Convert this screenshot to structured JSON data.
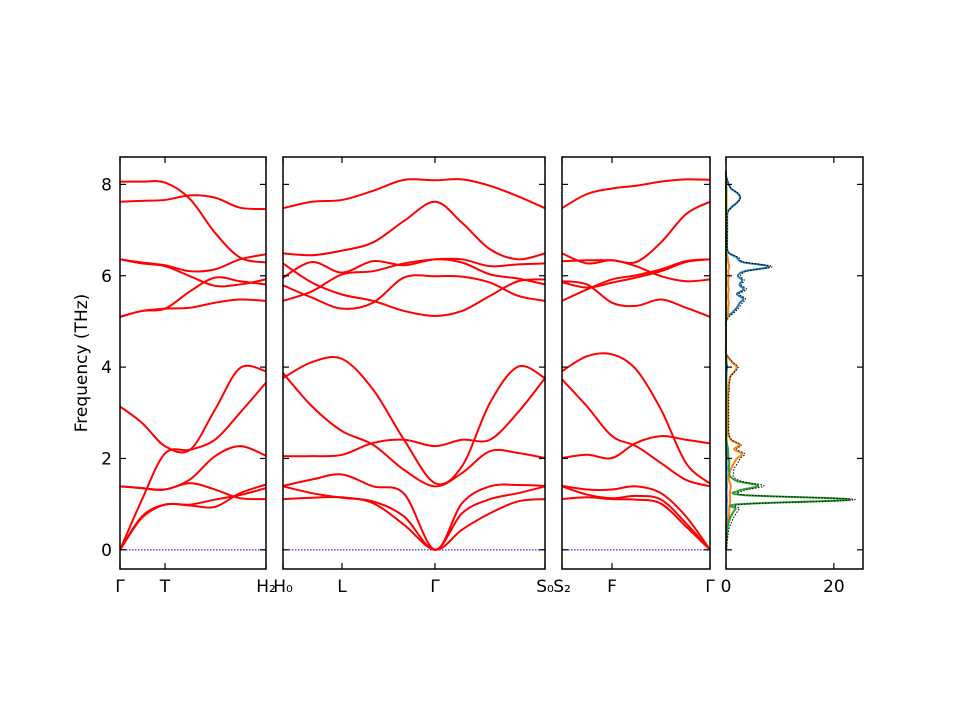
{
  "chart_data": [
    {
      "type": "line",
      "ylabel": "Frequency (THz)",
      "ylim": [
        -0.42,
        8.6
      ],
      "yticks": [
        0,
        2,
        4,
        6,
        8
      ],
      "band_color": "#ff0000",
      "zero_line_color": "#0000ff",
      "panels": [
        {
          "ticks": [
            {
              "label": "Γ",
              "x": 0
            },
            {
              "label": "T",
              "x": 0.45
            },
            {
              "label": "H₂",
              "x": 1.46
            }
          ],
          "x": [
            0,
            0.22,
            0.45,
            0.7,
            0.95,
            1.2,
            1.46
          ],
          "bands": [
            [
              8.06,
              8.06,
              8.04,
              7.68,
              6.94,
              6.4,
              6.29
            ],
            [
              7.62,
              7.64,
              7.66,
              7.76,
              7.71,
              7.49,
              7.46
            ],
            [
              6.36,
              6.29,
              6.23,
              6.1,
              6.14,
              6.36,
              6.47
            ],
            [
              6.36,
              6.27,
              6.21,
              5.99,
              5.78,
              5.81,
              5.92
            ],
            [
              5.1,
              5.23,
              5.28,
              5.66,
              5.96,
              5.88,
              5.81
            ],
            [
              5.1,
              5.23,
              5.28,
              5.3,
              5.41,
              5.48,
              5.45
            ],
            [
              3.14,
              2.78,
              2.27,
              2.19,
              3.07,
              3.98,
              3.91
            ],
            [
              0.0,
              1.1,
              2.11,
              2.19,
              2.41,
              3.0,
              3.66
            ],
            [
              1.39,
              1.35,
              1.32,
              1.54,
              2.05,
              2.27,
              2.06
            ],
            [
              1.39,
              1.35,
              1.32,
              1.46,
              1.32,
              1.13,
              1.11
            ],
            [
              0.0,
              0.73,
              0.99,
              0.97,
              0.94,
              1.24,
              1.43
            ],
            [
              0.0,
              0.7,
              0.99,
              0.99,
              1.1,
              1.2,
              1.35
            ]
          ]
        },
        {
          "ticks": [
            {
              "label": "H₀",
              "x": 0
            },
            {
              "label": "L",
              "x": 0.59
            },
            {
              "label": "Γ",
              "x": 1.52
            },
            {
              "label": "S₀",
              "x": 2.62
            }
          ],
          "x": [
            0,
            0.29,
            0.59,
            0.9,
            1.21,
            1.52,
            1.79,
            2.07,
            2.35,
            2.62
          ],
          "bands": [
            [
              7.48,
              7.62,
              7.66,
              7.86,
              8.1,
              8.09,
              8.11,
              7.97,
              7.74,
              7.48
            ],
            [
              6.49,
              6.45,
              6.55,
              6.73,
              7.2,
              7.62,
              7.16,
              6.58,
              6.36,
              6.49
            ],
            [
              5.96,
              6.3,
              6.07,
              6.32,
              6.23,
              6.36,
              6.29,
              6.03,
              5.94,
              5.81
            ],
            [
              5.45,
              5.66,
              6.03,
              6.1,
              6.27,
              6.36,
              6.36,
              6.21,
              6.25,
              6.27
            ],
            [
              6.27,
              5.85,
              5.59,
              5.45,
              5.23,
              5.12,
              5.23,
              5.56,
              5.88,
              5.92
            ],
            [
              5.79,
              5.52,
              5.28,
              5.41,
              5.96,
              5.99,
              5.98,
              5.85,
              5.56,
              5.45
            ],
            [
              3.76,
              4.11,
              4.18,
              3.51,
              2.41,
              1.46,
              1.83,
              3.22,
              4.01,
              3.76
            ],
            [
              3.87,
              3.14,
              2.6,
              2.3,
              1.75,
              1.39,
              1.68,
              2.16,
              2.12,
              2.01
            ],
            [
              2.05,
              2.05,
              2.08,
              2.34,
              2.41,
              2.27,
              2.41,
              2.41,
              3.01,
              3.76
            ],
            [
              1.4,
              1.54,
              1.65,
              1.39,
              1.23,
              0.0,
              1.02,
              1.39,
              1.42,
              1.4
            ],
            [
              1.39,
              1.24,
              1.14,
              1.06,
              0.73,
              0.0,
              0.8,
              1.11,
              1.24,
              1.39
            ],
            [
              1.11,
              1.14,
              1.15,
              1.02,
              0.55,
              0.0,
              0.44,
              0.8,
              1.06,
              1.11
            ]
          ]
        },
        {
          "ticks": [
            {
              "label": "S₂",
              "x": 0
            },
            {
              "label": "F",
              "x": 0.5
            },
            {
              "label": "Γ",
              "x": 1.48
            }
          ],
          "x": [
            0,
            0.25,
            0.5,
            0.74,
            0.99,
            1.24,
            1.48
          ],
          "bands": [
            [
              7.48,
              7.79,
              7.91,
              7.97,
              8.06,
              8.11,
              8.1
            ],
            [
              6.32,
              6.34,
              6.34,
              6.3,
              6.73,
              7.35,
              7.62
            ],
            [
              6.49,
              6.27,
              6.34,
              6.21,
              5.99,
              5.88,
              5.92
            ],
            [
              5.88,
              5.81,
              5.41,
              5.34,
              5.48,
              5.3,
              5.1
            ],
            [
              5.86,
              5.74,
              5.85,
              5.96,
              6.1,
              6.3,
              6.36
            ],
            [
              5.45,
              5.7,
              5.92,
              6.01,
              6.14,
              6.32,
              6.36
            ],
            [
              3.91,
              4.24,
              4.28,
              3.95,
              3.07,
              1.9,
              1.45
            ],
            [
              3.73,
              3.14,
              2.49,
              2.27,
              1.9,
              1.53,
              1.39
            ],
            [
              2.01,
              2.08,
              2.01,
              2.34,
              2.49,
              2.41,
              2.33
            ],
            [
              1.4,
              1.32,
              1.32,
              1.39,
              1.24,
              0.73,
              0.0
            ],
            [
              1.39,
              1.21,
              1.13,
              1.18,
              1.1,
              0.58,
              0.0
            ],
            [
              1.11,
              1.15,
              1.11,
              1.1,
              1.01,
              0.51,
              0.0
            ]
          ]
        }
      ]
    },
    {
      "type": "line",
      "orientation": "horizontal-density",
      "xlim": [
        0,
        25.4
      ],
      "xticks": [
        0,
        20
      ],
      "ylim": [
        -0.42,
        8.6
      ],
      "freq_start": 0.0,
      "freq_step": 0.1,
      "total_style": "black dotted",
      "series": [
        {
          "color": "#1f77b4",
          "values": [
            0.05,
            0.05,
            0.05,
            0.05,
            0.05,
            0.05,
            0.1,
            0.1,
            0.1,
            0.1,
            0.1,
            0.15,
            0.1,
            0.1,
            0.15,
            0.1,
            0.1,
            0.1,
            0.1,
            0.1,
            0.1,
            0.1,
            0.1,
            0.1,
            0.05,
            0.05,
            0.05,
            0.05,
            0.05,
            0.05,
            0.05,
            0.05,
            0.05,
            0.05,
            0.05,
            0.05,
            0.05,
            0.05,
            0.05,
            0.1,
            0.2,
            0.1,
            0.05,
            0,
            0,
            0,
            0,
            0,
            0,
            0,
            0,
            0.3,
            1.2,
            2.0,
            2.5,
            3.2,
            2.0,
            3.3,
            2.5,
            3.0,
            2.2,
            3.5,
            8.0,
            3.0,
            2.0,
            0.5,
            0.2,
            0.2,
            0.2,
            0.2,
            0.2,
            0.2,
            0.2,
            0.2,
            0.3,
            1.0,
            2.0,
            2.6,
            2.2,
            1.0,
            0.5,
            0.2,
            0,
            0
          ]
        },
        {
          "color": "#ff7f0e",
          "values": [
            0.02,
            0.05,
            0.1,
            0.15,
            0.2,
            0.3,
            0.4,
            0.5,
            0.6,
            0.6,
            0.7,
            0.8,
            0.7,
            0.8,
            0.9,
            0.6,
            0.5,
            0.7,
            1.0,
            1.5,
            2.0,
            3.0,
            1.5,
            2.5,
            1.0,
            0.5,
            0.4,
            0.4,
            0.4,
            0.4,
            0.4,
            0.4,
            0.4,
            0.4,
            0.4,
            0.5,
            0.5,
            0.6,
            0.8,
            1.5,
            2.0,
            1.2,
            0.5,
            0,
            0,
            0,
            0,
            0,
            0,
            0,
            0,
            0.3,
            0.4,
            0.4,
            0.5,
            0.4,
            0.4,
            0.5,
            0.4,
            0.4,
            0.5,
            0.4,
            0.6,
            0.4,
            0.3,
            0.1,
            0.05,
            0.05,
            0.05,
            0.05,
            0.1,
            0.1,
            0.1,
            0.1,
            0.1,
            0.1,
            0.1,
            0.1,
            0.1,
            0.1,
            0.05,
            0.05,
            0,
            0
          ]
        },
        {
          "color": "#2ca02c",
          "values": [
            0.02,
            0.05,
            0.1,
            0.15,
            0.2,
            0.3,
            0.5,
            0.8,
            1.2,
            1.8,
            2.5,
            23.0,
            3.0,
            2.5,
            6.0,
            2.2,
            0.8,
            0.6,
            0.5,
            0.6,
            0.5,
            0.4,
            0.4,
            0.2,
            0.1,
            0.05,
            0.05,
            0.05,
            0.05,
            0.05,
            0.05,
            0.05,
            0.05,
            0.05,
            0.05,
            0.05,
            0.05,
            0.05,
            0.05,
            0.05,
            0.05,
            0.05,
            0,
            0,
            0,
            0,
            0,
            0,
            0,
            0,
            0,
            0,
            0,
            0,
            0,
            0,
            0,
            0,
            0,
            0,
            0,
            0,
            0,
            0,
            0,
            0,
            0,
            0,
            0,
            0,
            0,
            0,
            0,
            0,
            0,
            0,
            0,
            0,
            0,
            0,
            0,
            0,
            0,
            0
          ]
        }
      ]
    }
  ]
}
